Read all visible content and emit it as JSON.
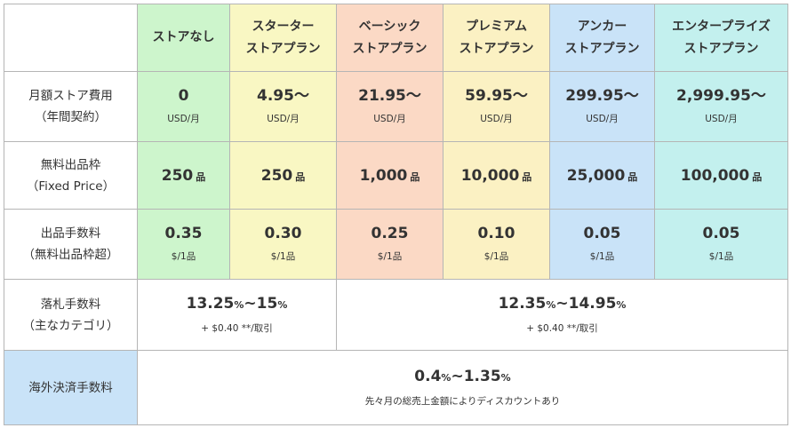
{
  "plans": [
    {
      "name_line1": "ストアなし",
      "name_line2": ""
    },
    {
      "name_line1": "スターター",
      "name_line2": "ストアプラン"
    },
    {
      "name_line1": "ベーシック",
      "name_line2": "ストアプラン"
    },
    {
      "name_line1": "プレミアム",
      "name_line2": "ストアプラン"
    },
    {
      "name_line1": "アンカー",
      "name_line2": "ストアプラン"
    },
    {
      "name_line1": "エンタープライズ",
      "name_line2": "ストアプラン"
    }
  ],
  "colors": {
    "none": "#cdf5cc",
    "starter": "#f9f7c3",
    "basic": "#fbd9c5",
    "premium": "#fbf1c3",
    "anchor": "#c9e3f8",
    "enterprise": "#c3f0ee",
    "border": "#b5b5b5",
    "text": "#333333"
  },
  "rows": {
    "monthly_fee": {
      "label_line1": "月額ストア費用",
      "label_line2": "（年間契約）",
      "unit": "USD/月",
      "values": [
        "0",
        "4.95〜",
        "21.95〜",
        "59.95〜",
        "299.95〜",
        "2,999.95〜"
      ]
    },
    "free_listings": {
      "label_line1": "無料出品枠",
      "label_line2": "（Fixed Price）",
      "unit": "品",
      "values": [
        "250",
        "250",
        "1,000",
        "10,000",
        "25,000",
        "100,000"
      ]
    },
    "insertion_fee": {
      "label_line1": "出品手数料",
      "label_line2": "（無料出品枠超）",
      "unit": "$/1品",
      "values": [
        "0.35",
        "0.30",
        "0.25",
        "0.10",
        "0.05",
        "0.05"
      ]
    },
    "final_value_fee": {
      "label_line1": "落札手数料",
      "label_line2": "（主なカテゴリ）",
      "groups": [
        {
          "low": "13.25",
          "high": "15",
          "pct": "%",
          "sep": "~",
          "note": "+ $0.40 **/取引"
        },
        {
          "low": "12.35",
          "high": "14.95",
          "pct": "%",
          "sep": "~",
          "note": "+ $0.40 **/取引"
        }
      ]
    },
    "intl_fee": {
      "label": "海外決済手数料",
      "low": "0.4",
      "high": "1.35",
      "pct": "%",
      "sep": "~",
      "note": "先々月の総売上金額によりディスカウントあり"
    }
  }
}
